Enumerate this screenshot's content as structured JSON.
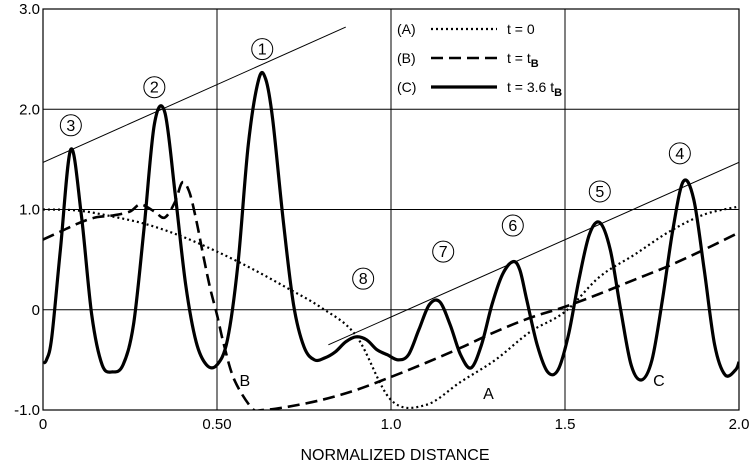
{
  "chart_data": {
    "type": "line",
    "title": "",
    "xlabel": "NORMALIZED DISTANCE",
    "ylabel": "",
    "xlim": [
      0,
      2.0
    ],
    "ylim": [
      -1.0,
      3.0
    ],
    "x_ticks": [
      {
        "value": 0,
        "label": "0"
      },
      {
        "value": 0.5,
        "label": "0.50"
      },
      {
        "value": 1.0,
        "label": "1.0"
      },
      {
        "value": 1.5,
        "label": "1.5"
      },
      {
        "value": 2.0,
        "label": "2.0"
      }
    ],
    "y_ticks": [
      {
        "value": 3.0,
        "label": "3.0"
      },
      {
        "value": 2.0,
        "label": "2.0"
      },
      {
        "value": 1.0,
        "label": "1.0"
      },
      {
        "value": 0,
        "label": "0"
      },
      {
        "value": -1.0,
        "label": "-1.0"
      }
    ],
    "grid": true,
    "legend_position": "top-right",
    "legend": [
      {
        "marker": "(A)",
        "style": "dotted",
        "label_prefix": "t = ",
        "label_value": "0",
        "label_sub": ""
      },
      {
        "marker": "(B)",
        "style": "dashed",
        "label_prefix": "t = ",
        "label_value": "t",
        "label_sub": "B"
      },
      {
        "marker": "(C)",
        "style": "solid",
        "label_prefix": "t = ",
        "label_value": "3.6 t",
        "label_sub": "B"
      }
    ],
    "series": [
      {
        "key": "A",
        "style": "dotted",
        "x": [
          0,
          0.1,
          0.2,
          0.3,
          0.4,
          0.5,
          0.6,
          0.7,
          0.8,
          0.9,
          1.0,
          1.1,
          1.2,
          1.3,
          1.4,
          1.5,
          1.6,
          1.7,
          1.8,
          1.9,
          2.0
        ],
        "y": [
          1.0,
          0.99,
          0.93,
          0.85,
          0.73,
          0.58,
          0.41,
          0.22,
          0.02,
          -0.26,
          -0.9,
          -0.95,
          -0.72,
          -0.5,
          -0.22,
          -0.02,
          0.33,
          0.55,
          0.78,
          0.95,
          1.03
        ]
      },
      {
        "key": "B",
        "style": "dashed",
        "x": [
          0,
          0.05,
          0.1,
          0.15,
          0.2,
          0.25,
          0.28,
          0.32,
          0.35,
          0.38,
          0.4,
          0.42,
          0.44,
          0.46,
          0.48,
          0.5,
          0.52,
          0.55,
          0.6,
          0.63,
          0.7,
          0.8,
          0.9,
          1.0,
          1.1,
          1.2,
          1.3,
          1.4,
          1.5,
          1.6,
          1.7,
          1.8,
          1.9,
          2.0
        ],
        "y": [
          0.7,
          0.78,
          0.86,
          0.92,
          0.94,
          0.98,
          1.05,
          0.98,
          0.92,
          1.08,
          1.27,
          1.18,
          0.9,
          0.55,
          0.22,
          -0.05,
          -0.35,
          -0.7,
          -0.98,
          -1.0,
          -0.97,
          -0.9,
          -0.8,
          -0.67,
          -0.53,
          -0.38,
          -0.22,
          -0.08,
          0.03,
          0.16,
          0.3,
          0.44,
          0.6,
          0.77
        ]
      },
      {
        "key": "C",
        "style": "solid",
        "x": [
          0,
          0.01,
          0.025,
          0.05,
          0.08,
          0.11,
          0.14,
          0.17,
          0.2,
          0.23,
          0.26,
          0.29,
          0.32,
          0.35,
          0.38,
          0.41,
          0.44,
          0.47,
          0.5,
          0.53,
          0.56,
          0.59,
          0.62,
          0.64,
          0.66,
          0.69,
          0.72,
          0.75,
          0.78,
          0.81,
          0.84,
          0.87,
          0.9,
          0.93,
          0.96,
          0.99,
          1.02,
          1.05,
          1.08,
          1.11,
          1.14,
          1.17,
          1.2,
          1.23,
          1.26,
          1.29,
          1.32,
          1.35,
          1.37,
          1.39,
          1.42,
          1.45,
          1.48,
          1.51,
          1.54,
          1.57,
          1.6,
          1.63,
          1.66,
          1.69,
          1.72,
          1.75,
          1.78,
          1.81,
          1.84,
          1.87,
          1.9,
          1.93,
          1.96,
          1.99,
          2.0
        ],
        "y": [
          -0.53,
          -0.5,
          -0.28,
          0.6,
          1.6,
          0.95,
          -0.05,
          -0.55,
          -0.62,
          -0.55,
          -0.15,
          0.8,
          1.85,
          1.97,
          1.15,
          0.25,
          -0.32,
          -0.55,
          -0.55,
          -0.3,
          0.45,
          1.65,
          2.3,
          2.3,
          1.9,
          0.9,
          0.05,
          -0.37,
          -0.5,
          -0.48,
          -0.42,
          -0.32,
          -0.27,
          -0.3,
          -0.4,
          -0.45,
          -0.5,
          -0.45,
          -0.2,
          0.05,
          0.08,
          -0.15,
          -0.45,
          -0.58,
          -0.35,
          0.05,
          0.35,
          0.48,
          0.4,
          0.1,
          -0.35,
          -0.62,
          -0.6,
          -0.25,
          0.3,
          0.75,
          0.87,
          0.6,
          0.0,
          -0.55,
          -0.7,
          -0.5,
          0.1,
          0.8,
          1.28,
          1.1,
          0.4,
          -0.35,
          -0.65,
          -0.6,
          -0.52
        ]
      }
    ],
    "curve_labels": [
      {
        "text": "A",
        "x": 1.28,
        "y": -0.83
      },
      {
        "text": "B",
        "x": 0.58,
        "y": -0.7
      },
      {
        "text": "C",
        "x": 1.77,
        "y": -0.7
      }
    ],
    "peak_markers": [
      {
        "text": "1",
        "x": 0.63,
        "y": 2.6
      },
      {
        "text": "2",
        "x": 0.32,
        "y": 2.22
      },
      {
        "text": "3",
        "x": 0.08,
        "y": 1.84
      },
      {
        "text": "4",
        "x": 1.83,
        "y": 1.56
      },
      {
        "text": "5",
        "x": 1.6,
        "y": 1.18
      },
      {
        "text": "6",
        "x": 1.35,
        "y": 0.84
      },
      {
        "text": "7",
        "x": 1.15,
        "y": 0.58
      },
      {
        "text": "8",
        "x": 0.92,
        "y": 0.31
      }
    ],
    "envelope_lines": [
      {
        "x1": 0,
        "y1": 1.47,
        "x2": 0.87,
        "y2": 2.82
      },
      {
        "x1": 0.82,
        "y1": -0.35,
        "x2": 2.0,
        "y2": 1.47
      }
    ]
  }
}
